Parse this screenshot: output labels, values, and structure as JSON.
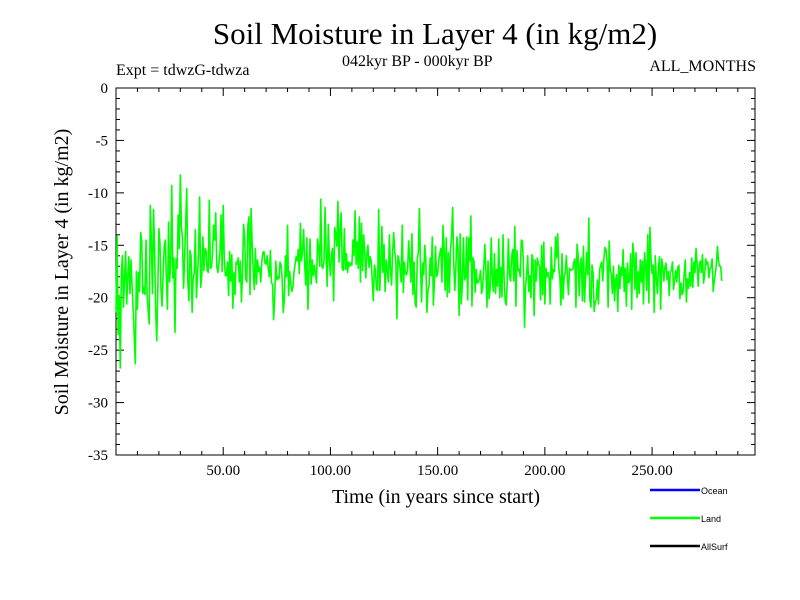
{
  "chart_data": {
    "type": "line",
    "title": "Soil Moisture in Layer 4 (in kg/m2)",
    "subtitle": "042kyr BP - 000kyr BP",
    "experiment": "Expt = tdwzG-tdwza",
    "period": "ALL_MONTHS",
    "xlabel": "Time (in years since start)",
    "ylabel": "Soil Moisture in Layer 4 (in kg/m2)",
    "xlim": [
      0,
      298
    ],
    "ylim": [
      -35,
      0
    ],
    "x_ticks": [
      50,
      100,
      150,
      200,
      250
    ],
    "x_tick_labels": [
      "50.00",
      "100.00",
      "150.00",
      "200.00",
      "250.00"
    ],
    "y_ticks": [
      0,
      -5,
      -10,
      -15,
      -20,
      -25,
      -30,
      -35
    ],
    "y_tick_labels": [
      "0",
      "-5",
      "-10",
      "-15",
      "-20",
      "-25",
      "-30",
      "-35"
    ],
    "legend_position": "bottom-right",
    "series": [
      {
        "name": "Ocean",
        "color": "#0000ff",
        "values": []
      },
      {
        "name": "Land",
        "color": "#00ff00",
        "x_start": 0,
        "x_step": 0.5,
        "values": [
          -21.4,
          -14.1,
          -23.5,
          -19.8,
          -26.7,
          -17.6,
          -16.0,
          -20.9,
          -18.0,
          -15.6,
          -20.6,
          -18.0,
          -16.1,
          -19.6,
          -16.4,
          -18.9,
          -21.1,
          -23.6,
          -26.3,
          -17.5,
          -21.1,
          -17.6,
          -19.4,
          -13.8,
          -14.6,
          -19.6,
          -19.0,
          -19.7,
          -14.5,
          -19.6,
          -21.2,
          -22.5,
          -11.2,
          -14.6,
          -19.6,
          -11.6,
          -15.4,
          -21.2,
          -24.1,
          -19.3,
          -13.4,
          -14.8,
          -19.2,
          -20.8,
          -17.5,
          -15.1,
          -14.5,
          -18.2,
          -21.1,
          -12.8,
          -18.5,
          -16.7,
          -9.3,
          -18.1,
          -16.2,
          -23.3,
          -16.3,
          -17.2,
          -12.1,
          -15.3,
          -8.3,
          -13.2,
          -14.4,
          -19.1,
          -16.3,
          -12.9,
          -9.6,
          -18.4,
          -20.3,
          -15.5,
          -16.0,
          -21.4,
          -18.1,
          -17.6,
          -13.5,
          -20.0,
          -18.0,
          -15.7,
          -10.4,
          -19.0,
          -17.9,
          -14.2,
          -17.4,
          -15.3,
          -15.5,
          -17.4,
          -17.6,
          -10.7,
          -17.2,
          -17.1,
          -15.8,
          -13.1,
          -14.5,
          -11.9,
          -17.0,
          -17.6,
          -16.7,
          -15.6,
          -12.1,
          -17.5,
          -11.2,
          -16.3,
          -17.9,
          -17.9,
          -16.6,
          -19.8,
          -15.6,
          -18.4,
          -15.9,
          -21.0,
          -17.6,
          -19.7,
          -16.6,
          -16.8,
          -16.2,
          -18.5,
          -16.5,
          -20.4,
          -17.6,
          -13.0,
          -14.3,
          -18.2,
          -18.5,
          -13.1,
          -12.3,
          -19.7,
          -11.5,
          -14.9,
          -17.4,
          -19.2,
          -15.3,
          -18.7,
          -16.4,
          -17.5,
          -17.1,
          -18.5,
          -16.6,
          -15.7,
          -15.6,
          -16.7,
          -16.8,
          -16.0,
          -17.2,
          -18.0,
          -15.5,
          -18.6,
          -18.7,
          -22.1,
          -20.0,
          -16.5,
          -18.3,
          -18.0,
          -18.2,
          -16.6,
          -16.9,
          -18.2,
          -21.4,
          -20.1,
          -16.0,
          -18.0,
          -13.1,
          -19.8,
          -17.5,
          -18.6,
          -19.4,
          -19.0,
          -17.6,
          -16.8,
          -16.1,
          -16.5,
          -15.4,
          -17.7,
          -12.9,
          -16.5,
          -15.5,
          -13.5,
          -16.9,
          -18.8,
          -14.3,
          -21.1,
          -17.4,
          -14.4,
          -18.7,
          -16.4,
          -17.9,
          -16.9,
          -17.7,
          -18.6,
          -14.4,
          -15.3,
          -17.0,
          -10.6,
          -17.0,
          -17.2,
          -16.5,
          -11.4,
          -15.9,
          -18.9,
          -13.0,
          -16.4,
          -17.9,
          -15.8,
          -15.3,
          -20.3,
          -13.3,
          -14.0,
          -15.1,
          -10.8,
          -16.6,
          -13.5,
          -11.9,
          -17.2,
          -17.4,
          -13.4,
          -17.3,
          -15.8,
          -17.6,
          -16.6,
          -17.0,
          -16.7,
          -16.9,
          -14.5,
          -16.0,
          -11.7,
          -16.8,
          -14.7,
          -17.2,
          -12.3,
          -18.5,
          -12.9,
          -17.4,
          -14.0,
          -15.6,
          -18.1,
          -15.8,
          -15.0,
          -17.1,
          -16.1,
          -16.5,
          -18.3,
          -20.3,
          -16.9,
          -17.4,
          -19.2,
          -19.3,
          -11.6,
          -19.3,
          -16.8,
          -13.2,
          -17.6,
          -14.9,
          -19.4,
          -16.4,
          -17.4,
          -18.5,
          -14.0,
          -17.3,
          -18.8,
          -15.7,
          -13.8,
          -15.6,
          -16.5,
          -22.0,
          -16.0,
          -16.5,
          -17.3,
          -18.5,
          -13.1,
          -19.5,
          -16.6,
          -17.7,
          -17.8,
          -17.3,
          -14.6,
          -16.5,
          -18.5,
          -13.9,
          -19.7,
          -16.6,
          -20.5,
          -20.9,
          -16.3,
          -15.7,
          -11.5,
          -17.0,
          -20.4,
          -16.7,
          -17.8,
          -15.0,
          -16.4,
          -21.4,
          -19.3,
          -18.9,
          -16.2,
          -17.9,
          -14.2,
          -20.7,
          -18.5,
          -15.1,
          -18.0,
          -17.7,
          -16.4,
          -15.8,
          -15.3,
          -18.5,
          -13.1,
          -15.3,
          -19.3,
          -14.3,
          -19.9,
          -15.7,
          -19.5,
          -15.3,
          -14.2,
          -11.4,
          -16.7,
          -19.3,
          -17.1,
          -14.2,
          -15.3,
          -21.7,
          -13.9,
          -20.6,
          -18.7,
          -14.3,
          -18.3,
          -18.1,
          -14.2,
          -20.2,
          -14.3,
          -16.5,
          -12.2,
          -20.8,
          -16.2,
          -16.6,
          -19.5,
          -17.3,
          -18.6,
          -18.5,
          -18.2,
          -17.4,
          -19.6,
          -19.0,
          -17.2,
          -14.9,
          -17.4,
          -20.9,
          -16.5,
          -20.1,
          -19.1,
          -14.3,
          -18.1,
          -19.4,
          -15.8,
          -19.6,
          -17.3,
          -18.9,
          -14.4,
          -20.0,
          -17.1,
          -19.9,
          -14.0,
          -18.2,
          -20.4,
          -20.7,
          -18.2,
          -14.4,
          -17.9,
          -18.4,
          -16.1,
          -15.4,
          -18.4,
          -13.2,
          -20.8,
          -15.5,
          -17.4,
          -17.3,
          -18.0,
          -14.5,
          -14.6,
          -16.6,
          -22.8,
          -19.0,
          -17.7,
          -16.0,
          -19.4,
          -17.9,
          -20.0,
          -15.9,
          -16.4,
          -21.7,
          -16.4,
          -18.4,
          -16.2,
          -16.8,
          -17.0,
          -20.2,
          -15.0,
          -19.7,
          -14.7,
          -20.6,
          -17.2,
          -18.0,
          -17.6,
          -18.1,
          -20.6,
          -15.2,
          -18.2,
          -17.3,
          -17.5,
          -14.2,
          -16.2,
          -13.9,
          -17.3,
          -18.0,
          -20.7,
          -15.8,
          -20.1,
          -18.0,
          -17.6,
          -16.0,
          -17.9,
          -19.7,
          -17.2,
          -17.4,
          -17.3,
          -17.3,
          -16.6,
          -16.3,
          -20.9,
          -14.9,
          -16.0,
          -19.8,
          -16.8,
          -16.2,
          -20.3,
          -15.1,
          -20.4,
          -17.9,
          -15.7,
          -17.8,
          -12.4,
          -20.2,
          -20.9,
          -16.9,
          -17.7,
          -21.3,
          -20.4,
          -20.2,
          -18.3,
          -20.6,
          -17.4,
          -16.9,
          -16.6,
          -18.4,
          -16.4,
          -15.2,
          -15.4,
          -16.5,
          -20.9,
          -14.6,
          -17.4,
          -17.7,
          -19.6,
          -17.0,
          -20.3,
          -18.3,
          -17.8,
          -21.3,
          -16.9,
          -19.1,
          -17.1,
          -17.9,
          -15.4,
          -19.4,
          -17.2,
          -20.8,
          -16.7,
          -18.6,
          -18.3,
          -15.8,
          -21.1,
          -14.8,
          -16.0,
          -19.2,
          -15.7,
          -20.0,
          -17.5,
          -19.6,
          -16.4,
          -18.5,
          -16.5,
          -20.6,
          -15.7,
          -16.9,
          -19.3,
          -14.0,
          -20.5,
          -13.3,
          -16.3,
          -17.7,
          -16.9,
          -21.4,
          -16.0,
          -18.2,
          -19.6,
          -17.0,
          -16.1,
          -21.1,
          -16.3,
          -17.0,
          -18.4,
          -17.1,
          -16.7,
          -18.3,
          -17.5,
          -19.8,
          -17.5,
          -17.4,
          -16.6,
          -19.2,
          -18.3,
          -17.4,
          -18.5,
          -17.1,
          -16.9,
          -20.1,
          -18.6,
          -19.7,
          -19.4,
          -17.6,
          -16.4,
          -20.4,
          -18.2,
          -19.1,
          -17.6,
          -18.9,
          -16.2,
          -19.0,
          -16.6,
          -17.6,
          -15.3,
          -16.7,
          -18.9,
          -16.9,
          -16.5,
          -17.6,
          -15.9,
          -18.6,
          -17.9,
          -16.3,
          -16.8,
          -16.6,
          -18.1,
          -17.2,
          -17.1,
          -16.3,
          -19.4,
          -18.4,
          -17.7,
          -16.8,
          -15.1,
          -16.5,
          -17.0,
          -17.0,
          -18.4
        ]
      },
      {
        "name": "AllSurf",
        "color": "#000000",
        "values": []
      }
    ]
  }
}
